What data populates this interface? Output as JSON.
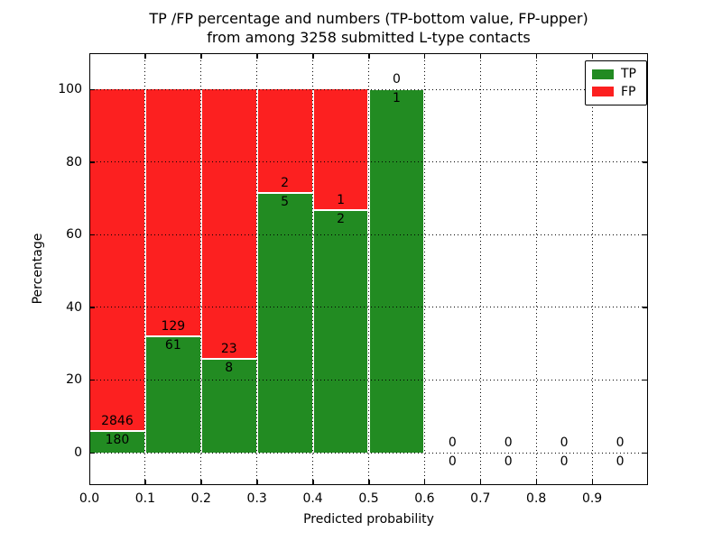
{
  "chart_data": {
    "type": "bar",
    "stacked": true,
    "title_line1": "TP /FP percentage and numbers (TP-bottom value, FP-upper)",
    "title_line2": "from among 3258 submitted L-type contacts",
    "xlabel": "Predicted probability",
    "ylabel": "Percentage",
    "total_contacts": 3258,
    "xlim": [
      0.0,
      1.0
    ],
    "ylim": [
      -9,
      110
    ],
    "xticks": [
      "0.0",
      "0.1",
      "0.2",
      "0.3",
      "0.4",
      "0.5",
      "0.6",
      "0.7",
      "0.8",
      "0.9"
    ],
    "yticks": [
      "0",
      "20",
      "40",
      "60",
      "80",
      "100"
    ],
    "grid": "dotted, on",
    "legend": {
      "position": "upper right",
      "entries": [
        {
          "label": "TP",
          "color": "#228b22"
        },
        {
          "label": "FP",
          "color": "#fc2020"
        }
      ]
    },
    "note": "bars stacked to 100%; numeric labels show counts: TP below boundary, FP above boundary",
    "bins": [
      {
        "range": [
          0.0,
          0.1
        ],
        "tp": 180,
        "fp": 2846
      },
      {
        "range": [
          0.1,
          0.2
        ],
        "tp": 61,
        "fp": 129
      },
      {
        "range": [
          0.2,
          0.3
        ],
        "tp": 8,
        "fp": 23
      },
      {
        "range": [
          0.3,
          0.4
        ],
        "tp": 5,
        "fp": 2
      },
      {
        "range": [
          0.4,
          0.5
        ],
        "tp": 2,
        "fp": 1
      },
      {
        "range": [
          0.5,
          0.6
        ],
        "tp": 1,
        "fp": 0
      },
      {
        "range": [
          0.6,
          0.7
        ],
        "tp": 0,
        "fp": 0
      },
      {
        "range": [
          0.7,
          0.8
        ],
        "tp": 0,
        "fp": 0
      },
      {
        "range": [
          0.8,
          0.9
        ],
        "tp": 0,
        "fp": 0
      },
      {
        "range": [
          0.9,
          1.0
        ],
        "tp": 0,
        "fp": 0
      }
    ]
  },
  "colors": {
    "tp_green": "#228b22",
    "fp_red": "#fc2020",
    "grid_and_frame": "#000000",
    "background": "#ffffff"
  }
}
